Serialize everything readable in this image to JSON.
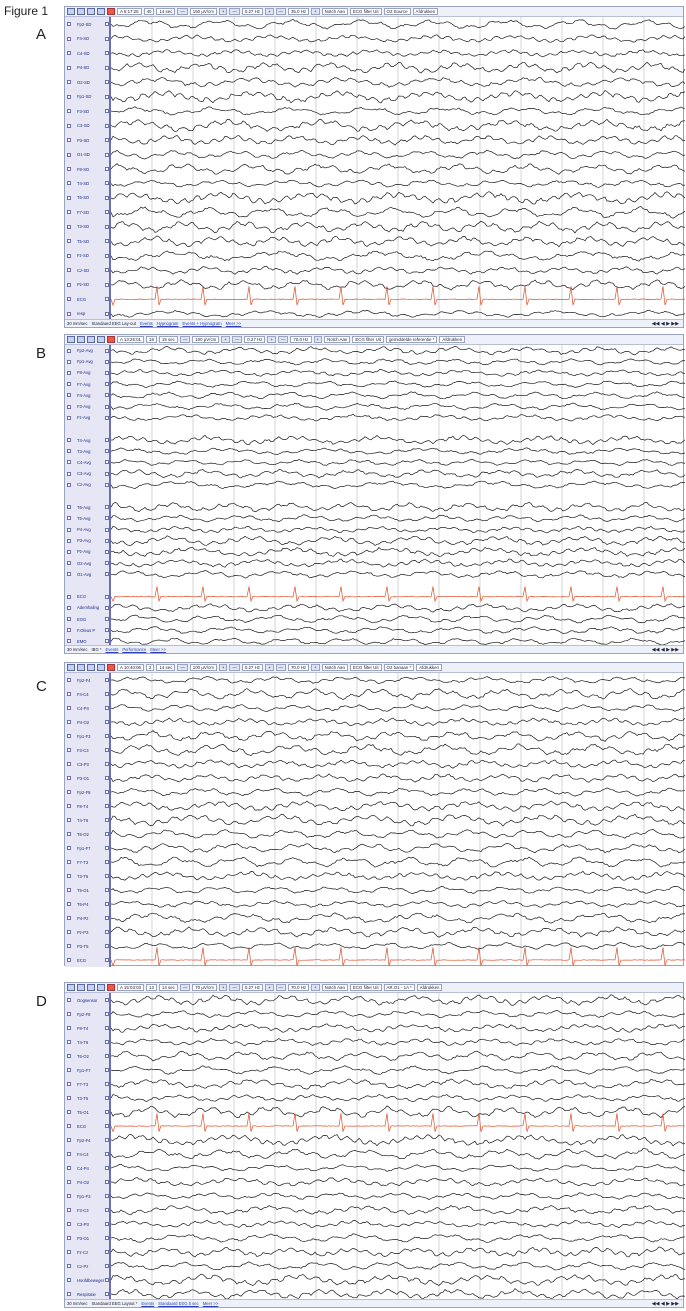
{
  "figure_title": "Figure 1",
  "panels": [
    {
      "label": "A",
      "toolbar": [
        "A 6:17:25",
        "40",
        "14 sec",
        "—",
        "150 µV/cm",
        "+",
        "—",
        "0.27 Hz",
        "+",
        "—",
        "35.0 Hz",
        "+",
        "Notch Aan",
        "ECG filter Uit",
        "O2 Source",
        "Afdrukken"
      ],
      "channels": [
        "Fp2-SD",
        "F4-SD",
        "C4-SD",
        "P4-SD",
        "O2-SD",
        "Fp1-SD",
        "F3-SD",
        "C3-SD",
        "P3-SD",
        "O1-SD",
        "F8-SD",
        "T4-SD",
        "T6-SD",
        "F7-SD",
        "T3-SD",
        "T5-SD",
        "Fz-SD",
        "Cz-SD",
        "Pz-SD",
        "ECG",
        "resp"
      ],
      "status": [
        "30 mm/sec",
        "Standaard EEG Lay-out",
        "Events",
        "Hypnogram",
        "Events + Hypnogram",
        "Meer >>"
      ]
    },
    {
      "label": "B",
      "toolbar": [
        "A 13:25:01",
        "18",
        "15 sec",
        "—",
        "100 µV/cm",
        "+",
        "—",
        "0.27 Hz",
        "+",
        "—",
        "70.0 Hz",
        "+",
        "Notch Aan",
        "ECG filter Uit",
        "gemiddelde referentie *",
        "Afdrukken"
      ],
      "channels": [
        "Fp2-Avg",
        "Fp1-Avg",
        "F8-Avg",
        "F7-Avg",
        "F4-Avg",
        "F3-Avg",
        "Fz-Avg",
        "",
        "T4-Avg",
        "T3-Avg",
        "C4-Avg",
        "C3-Avg",
        "Cz-Avg",
        "",
        "T6-Avg",
        "T5-Avg",
        "P4-Avg",
        "P3-Avg",
        "Pz-Avg",
        "O2-Avg",
        "O1-Avg",
        "",
        "ECG",
        "Ademhaling",
        "EOG",
        "F.Oleus P",
        "EMG"
      ],
      "status": [
        "30 mm/sec",
        "IBG *",
        "Events",
        "Performance",
        "Meer >>"
      ]
    },
    {
      "label": "C",
      "toolbar": [
        "A 10:40:06",
        "2",
        "14 sec",
        "—",
        "100 µV/cm",
        "+",
        "—",
        "0.27 Hz",
        "+",
        "—",
        "70.0 Hz",
        "+",
        "Notch Aan",
        "ECG filter Uit",
        "O2 banaan *",
        "Afdrukken"
      ],
      "channels": [
        "Fp2-F4",
        "F4-C4",
        "C4-P4",
        "P4-O2",
        "Fp1-F3",
        "F3-C3",
        "C3-P3",
        "P3-O1",
        "Fp2-F8",
        "F8-T4",
        "T4-T6",
        "T6-O2",
        "Fp1-F7",
        "F7-T3",
        "T3-T5",
        "T5-O1",
        "T6-P4",
        "P4-Pz",
        "Pz-P3",
        "P3-T5",
        "ECG"
      ],
      "status": []
    },
    {
      "label": "D",
      "toolbar": [
        "A 15:03:03",
        "13",
        "14 sec",
        "—",
        "70 µV/cm",
        "+",
        "—",
        "0.27 Hz",
        "+",
        "—",
        "70.0 Hz",
        "+",
        "Notch Aan",
        "ECG filter Uit",
        "AR.O1 - 1A *",
        "Afdrukken"
      ],
      "channels": [
        "Oogsensor",
        "Fp2-F8",
        "F8-T4",
        "T4-T6",
        "T6-O2",
        "Fp1-F7",
        "F7-T3",
        "T3-T5",
        "T5-O1",
        "ECG",
        "Fp2-F4",
        "F4-C4",
        "C4-P4",
        "P4-O2",
        "Fp1-F3",
        "F3-C3",
        "C3-P3",
        "P3-O1",
        "Fz-Cz",
        "Cz-Pz",
        "Hoofdbeweger",
        "Respiratie"
      ],
      "status": [
        "30 mm/sec",
        "Standaard EEG Layout *",
        "Events",
        "Standaard EEG 5 sec",
        "Meer >>"
      ]
    }
  ],
  "colors": {
    "trace": "#1a1a1a",
    "ecg": "#e0502a",
    "grid": "#c9c9c9",
    "sidebar": "#e7e6f4",
    "accent": "#6a6fae"
  }
}
